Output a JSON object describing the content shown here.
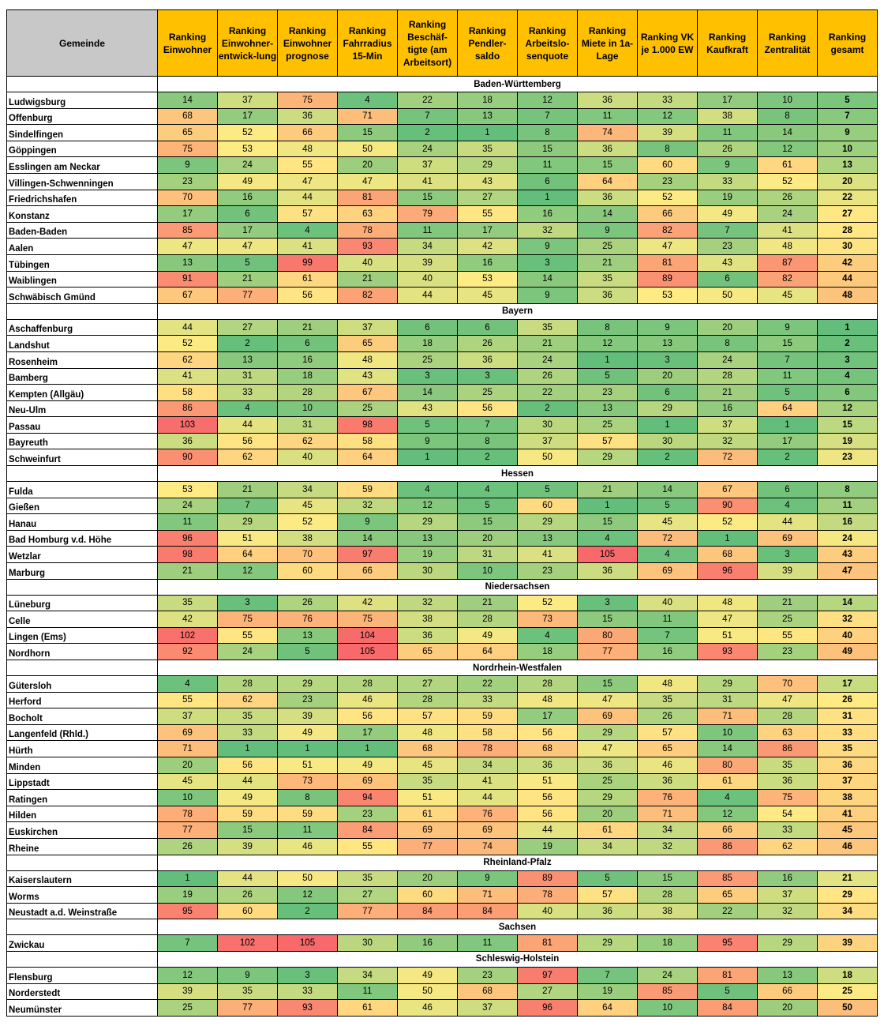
{
  "table": {
    "header": {
      "corner": "Gemeinde",
      "columns": [
        "Ranking Einwohner",
        "Ranking Einwohner-entwick-lung",
        "Ranking Einwohner prognose",
        "Ranking Fahrradius 15-Min",
        "Ranking Beschäf-tigte (am Arbeitsort)",
        "Ranking Pendler-saldo",
        "Ranking Arbeitslo-senquote",
        "Ranking Miete in 1a-Lage",
        "Ranking VK je 1.000 EW",
        "Ranking Kaufkraft",
        "Ranking Zentralität",
        "Ranking gesamt"
      ]
    },
    "groups": [
      {
        "region": "Baden-Württemberg",
        "rows": [
          {
            "name": "Ludwigsburg",
            "values": [
              14,
              37,
              75,
              4,
              22,
              18,
              12,
              36,
              33,
              17,
              10,
              5
            ]
          },
          {
            "name": "Offenburg",
            "values": [
              68,
              17,
              36,
              71,
              7,
              13,
              7,
              11,
              12,
              38,
              8,
              7
            ]
          },
          {
            "name": "Sindelfingen",
            "values": [
              65,
              52,
              66,
              15,
              2,
              1,
              8,
              74,
              39,
              11,
              14,
              9
            ]
          },
          {
            "name": "Göppingen",
            "values": [
              75,
              53,
              48,
              50,
              24,
              35,
              15,
              36,
              8,
              26,
              12,
              10
            ]
          },
          {
            "name": "Esslingen am Neckar",
            "values": [
              9,
              24,
              55,
              20,
              37,
              29,
              11,
              15,
              60,
              9,
              61,
              13
            ]
          },
          {
            "name": "Villingen-Schwenningen",
            "values": [
              23,
              49,
              47,
              47,
              41,
              43,
              6,
              64,
              23,
              33,
              52,
              20
            ]
          },
          {
            "name": "Friedrichshafen",
            "values": [
              70,
              16,
              44,
              81,
              15,
              27,
              1,
              36,
              52,
              19,
              26,
              22
            ]
          },
          {
            "name": "Konstanz",
            "values": [
              17,
              6,
              57,
              63,
              79,
              55,
              16,
              14,
              66,
              49,
              24,
              27
            ]
          },
          {
            "name": "Baden-Baden",
            "values": [
              85,
              17,
              4,
              78,
              11,
              17,
              32,
              9,
              82,
              7,
              41,
              28
            ]
          },
          {
            "name": "Aalen",
            "values": [
              47,
              47,
              41,
              93,
              34,
              42,
              9,
              25,
              47,
              23,
              48,
              30
            ]
          },
          {
            "name": "Tübingen",
            "values": [
              13,
              5,
              99,
              40,
              39,
              16,
              3,
              21,
              81,
              43,
              87,
              42
            ]
          },
          {
            "name": "Waiblingen",
            "values": [
              91,
              21,
              61,
              21,
              40,
              53,
              14,
              35,
              89,
              6,
              82,
              44
            ]
          },
          {
            "name": "Schwäbisch Gmünd",
            "values": [
              67,
              77,
              56,
              82,
              44,
              45,
              9,
              36,
              53,
              50,
              45,
              48
            ]
          }
        ]
      },
      {
        "region": "Bayern",
        "rows": [
          {
            "name": "Aschaffenburg",
            "values": [
              44,
              27,
              21,
              37,
              6,
              6,
              35,
              8,
              9,
              20,
              9,
              1
            ]
          },
          {
            "name": "Landshut",
            "values": [
              52,
              2,
              6,
              65,
              18,
              26,
              21,
              12,
              13,
              8,
              15,
              2
            ]
          },
          {
            "name": "Rosenheim",
            "values": [
              62,
              13,
              16,
              48,
              25,
              36,
              24,
              1,
              3,
              24,
              7,
              3
            ]
          },
          {
            "name": "Bamberg",
            "values": [
              41,
              31,
              18,
              43,
              3,
              3,
              26,
              5,
              20,
              28,
              11,
              4
            ]
          },
          {
            "name": "Kempten (Allgäu)",
            "values": [
              58,
              33,
              28,
              67,
              14,
              25,
              22,
              23,
              6,
              21,
              5,
              6
            ]
          },
          {
            "name": "Neu-Ulm",
            "values": [
              86,
              4,
              10,
              25,
              43,
              56,
              2,
              13,
              29,
              16,
              64,
              12
            ]
          },
          {
            "name": "Passau",
            "values": [
              103,
              44,
              31,
              98,
              5,
              7,
              30,
              25,
              1,
              37,
              1,
              15
            ]
          },
          {
            "name": "Bayreuth",
            "values": [
              36,
              56,
              62,
              58,
              9,
              8,
              37,
              57,
              30,
              32,
              17,
              19
            ]
          },
          {
            "name": "Schweinfurt",
            "values": [
              90,
              62,
              40,
              64,
              1,
              2,
              50,
              29,
              2,
              72,
              2,
              23
            ]
          }
        ]
      },
      {
        "region": "Hessen",
        "rows": [
          {
            "name": "Fulda",
            "values": [
              53,
              21,
              34,
              59,
              4,
              4,
              5,
              21,
              14,
              67,
              6,
              8
            ]
          },
          {
            "name": "Gießen",
            "values": [
              24,
              7,
              45,
              32,
              12,
              5,
              60,
              1,
              5,
              90,
              4,
              11
            ]
          },
          {
            "name": "Hanau",
            "values": [
              11,
              29,
              52,
              9,
              29,
              15,
              29,
              15,
              45,
              52,
              44,
              16
            ]
          },
          {
            "name": "Bad Homburg v.d. Höhe",
            "values": [
              96,
              51,
              38,
              14,
              13,
              20,
              13,
              4,
              72,
              1,
              69,
              24
            ]
          },
          {
            "name": "Wetzlar",
            "values": [
              98,
              64,
              70,
              97,
              19,
              31,
              41,
              105,
              4,
              68,
              3,
              43
            ]
          },
          {
            "name": "Marburg",
            "values": [
              21,
              12,
              60,
              66,
              30,
              10,
              23,
              36,
              69,
              96,
              39,
              47
            ]
          }
        ]
      },
      {
        "region": "Niedersachsen",
        "rows": [
          {
            "name": "Lüneburg",
            "values": [
              35,
              3,
              26,
              42,
              32,
              21,
              52,
              3,
              40,
              48,
              21,
              14
            ]
          },
          {
            "name": "Celle",
            "values": [
              42,
              75,
              76,
              75,
              38,
              28,
              73,
              15,
              11,
              47,
              25,
              32
            ]
          },
          {
            "name": "Lingen (Ems)",
            "values": [
              102,
              55,
              13,
              104,
              36,
              49,
              4,
              80,
              7,
              51,
              55,
              40
            ]
          },
          {
            "name": "Nordhorn",
            "values": [
              92,
              24,
              5,
              105,
              65,
              64,
              18,
              77,
              16,
              93,
              23,
              49
            ]
          }
        ]
      },
      {
        "region": "Nordrhein-Westfalen",
        "rows": [
          {
            "name": "Gütersloh",
            "values": [
              4,
              28,
              29,
              28,
              27,
              22,
              28,
              15,
              48,
              29,
              70,
              17
            ]
          },
          {
            "name": "Herford",
            "values": [
              55,
              62,
              23,
              46,
              28,
              33,
              48,
              47,
              35,
              31,
              47,
              26
            ]
          },
          {
            "name": "Bocholt",
            "values": [
              37,
              35,
              39,
              56,
              57,
              59,
              17,
              69,
              26,
              71,
              28,
              31
            ]
          },
          {
            "name": "Langenfeld (Rhld.)",
            "values": [
              69,
              33,
              49,
              17,
              48,
              58,
              56,
              29,
              57,
              10,
              63,
              33
            ]
          },
          {
            "name": "Hürth",
            "values": [
              71,
              1,
              1,
              1,
              68,
              78,
              68,
              47,
              65,
              14,
              86,
              35
            ]
          },
          {
            "name": "Minden",
            "values": [
              20,
              56,
              51,
              49,
              45,
              34,
              36,
              36,
              46,
              80,
              35,
              36
            ]
          },
          {
            "name": "Lippstadt",
            "values": [
              45,
              44,
              73,
              69,
              35,
              41,
              51,
              25,
              36,
              61,
              36,
              37
            ]
          },
          {
            "name": "Ratingen",
            "values": [
              10,
              49,
              8,
              94,
              51,
              44,
              56,
              29,
              76,
              4,
              75,
              38
            ]
          },
          {
            "name": "Hilden",
            "values": [
              78,
              59,
              59,
              23,
              61,
              76,
              56,
              20,
              71,
              12,
              54,
              41
            ]
          },
          {
            "name": "Euskirchen",
            "values": [
              77,
              15,
              11,
              84,
              69,
              69,
              44,
              61,
              34,
              66,
              33,
              45
            ]
          },
          {
            "name": "Rheine",
            "values": [
              26,
              39,
              46,
              55,
              77,
              74,
              19,
              34,
              32,
              86,
              62,
              46
            ]
          }
        ]
      },
      {
        "region": "Rheinland-Pfalz",
        "rows": [
          {
            "name": "Kaiserslautern",
            "values": [
              1,
              44,
              50,
              35,
              20,
              9,
              89,
              5,
              15,
              85,
              16,
              21
            ]
          },
          {
            "name": "Worms",
            "values": [
              19,
              26,
              12,
              27,
              60,
              71,
              78,
              57,
              28,
              65,
              37,
              29
            ]
          },
          {
            "name": "Neustadt a.d. Weinstraße",
            "values": [
              95,
              60,
              2,
              77,
              84,
              84,
              40,
              36,
              38,
              22,
              32,
              34
            ]
          }
        ]
      },
      {
        "region": "Sachsen",
        "rows": [
          {
            "name": "Zwickau",
            "values": [
              7,
              102,
              105,
              30,
              16,
              11,
              81,
              29,
              18,
              95,
              29,
              39
            ]
          }
        ]
      },
      {
        "region": "Schleswig-Holstein",
        "rows": [
          {
            "name": "Flensburg",
            "values": [
              12,
              9,
              3,
              34,
              49,
              23,
              97,
              7,
              24,
              81,
              13,
              18
            ]
          },
          {
            "name": "Norderstedt",
            "values": [
              39,
              35,
              33,
              11,
              50,
              68,
              27,
              19,
              85,
              5,
              66,
              25
            ]
          },
          {
            "name": "Neumünster",
            "values": [
              25,
              77,
              93,
              61,
              46,
              37,
              96,
              64,
              10,
              84,
              20,
              50
            ]
          }
        ]
      }
    ]
  }
}
